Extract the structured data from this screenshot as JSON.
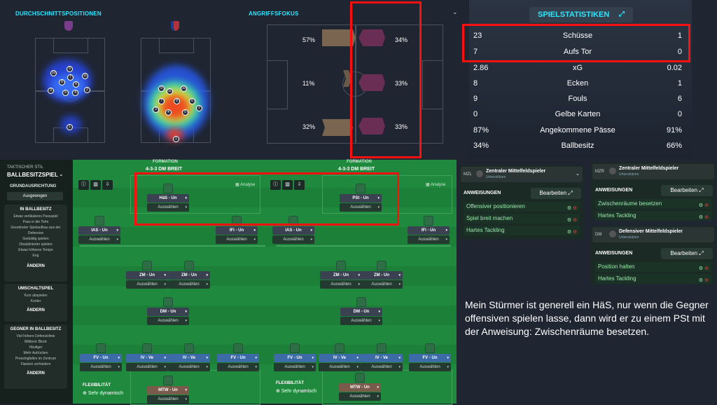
{
  "avg_positions": {
    "title": "DURCHSCHNITTSPOSITIONEN",
    "home_players": [
      "1",
      "2",
      "3",
      "4",
      "5",
      "6",
      "7",
      "8",
      "9",
      "10",
      "11"
    ],
    "away_players": [
      "1",
      "2",
      "3",
      "4",
      "5",
      "6",
      "7",
      "8",
      "9",
      "10",
      "11"
    ]
  },
  "attack_focus": {
    "title": "ANGRIFFSFOKUS",
    "home": {
      "left": "57%",
      "center": "11%",
      "right": "32%"
    },
    "away": {
      "left": "34%",
      "center": "33%",
      "right": "33%"
    }
  },
  "stats": {
    "title": "SPIELSTATISTIKEN",
    "rows": [
      {
        "home": "23",
        "label": "Schüsse",
        "away": "1"
      },
      {
        "home": "7",
        "label": "Aufs Tor",
        "away": "0"
      },
      {
        "home": "2.86",
        "label": "xG",
        "away": "0.02"
      },
      {
        "home": "8",
        "label": "Ecken",
        "away": "1"
      },
      {
        "home": "9",
        "label": "Fouls",
        "away": "6"
      },
      {
        "home": "0",
        "label": "Gelbe Karten",
        "away": "0"
      },
      {
        "home": "87%",
        "label": "Angekommene Pässe",
        "away": "91%"
      },
      {
        "home": "34%",
        "label": "Ballbesitz",
        "away": "66%"
      }
    ]
  },
  "sidebar": {
    "style_label": "TAKTISCHER STIL",
    "style": "BALLBESITZSPIEL",
    "alignment_label": "GRUNDAUSRICHTUNG",
    "alignment": "Ausgewogen",
    "in_possession": {
      "title": "IN BALLBESITZ",
      "items": [
        "Etwas vertikaleres Passspiel",
        "Pass in die Tiefe",
        "Geordneter Spielaufbau aus der Defensive",
        "Geduldig spielen",
        "Disziplinierter spielen",
        "Etwas höheres Tempo",
        "Eng"
      ],
      "button": "ÄNDERN"
    },
    "transition": {
      "title": "UMSCHALTSPIEL",
      "items": [
        "Kurz abspielen",
        "Konter"
      ],
      "button": "ÄNDERN"
    },
    "out_possession": {
      "title": "GEGNER IN BALLBESITZ",
      "items": [
        "Viel höhere Defensivlinie",
        "Mittlerer Block",
        "Häufiger",
        "Mehr Aufrücken",
        "Pressingfallen im Zentrum",
        "Flanken verhindern"
      ],
      "button": "ÄNDERN"
    }
  },
  "formation_left": {
    "label": "FORMATION",
    "value": "4-3-3 DM BREIT",
    "analyse": "Analyse",
    "flex_label": "FLEXIBILITÄT",
    "flex_value": "Sehr dynamisch"
  },
  "formation_right": {
    "label": "FORMATION",
    "value": "4-3-3 DM BREIT",
    "analyse": "Analyse",
    "flex_label": "FLEXIBILITÄT",
    "flex_value": "Sehr dynamisch"
  },
  "select_label": "Auswählen",
  "roles_left": [
    "HäS - Un",
    "IAS - Un",
    "IFl - Un",
    "ZM - Un",
    "ZM - Un",
    "DM - Un",
    "FV - Un",
    "IV - Ve",
    "IV - Ve",
    "FV - Un",
    "MTW - Un"
  ],
  "roles_right": [
    "PSt - Un",
    "IAS - Un",
    "IFl - Un",
    "ZM - Un",
    "ZM - Un",
    "DM - Un",
    "FV - Un",
    "IV - Ve",
    "IV - Ve",
    "FV - Un",
    "MTW - Un"
  ],
  "mzl": {
    "code": "MZL",
    "name": "Zentraler Mittelfeldspieler",
    "duty": "Unterstützen",
    "instr_label": "ANWEISUNGEN",
    "edit": "Bearbeiten",
    "items": [
      "Offensiver positionieren",
      "Spiel breit machen",
      "Hartes Tackling"
    ]
  },
  "mzr": {
    "code": "MZR",
    "name": "Zentraler Mittelfeldspieler",
    "duty": "Unterstützen",
    "instr_label": "ANWEISUNGEN",
    "edit": "Bearbeiten",
    "items": [
      "Zwischenräume besetzen",
      "Hartes Tackling"
    ]
  },
  "dm": {
    "code": "DM",
    "name": "Defensiver Mittelfeldspieler",
    "duty": "Unterstützen",
    "instr_label": "ANWEISUNGEN",
    "edit": "Bearbeiten",
    "items": [
      "Position halten",
      "Hartes Tackling"
    ]
  },
  "note": "Mein Stürmer ist generell ein HäS, nur wenn die Gegner offensiven spielen lasse, dann wird er zu einem PSt mit der Anweisung: Zwischenräume besetzen.",
  "colors": {
    "accent": "#2ee6ff",
    "highlight": "#ff1010",
    "pitch": "#1f8a3e"
  }
}
